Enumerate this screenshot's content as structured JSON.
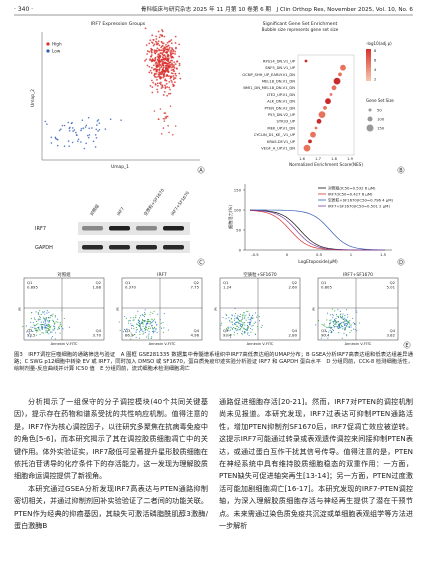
{
  "header": {
    "page": "· 340 ·",
    "journal": "骨科临床与研究杂志 2025 年 11 月第 10 卷第 6 期　J Clin Orthop Res, November 2025, Vol. 10, No. 6"
  },
  "figure": {
    "panel_a": {
      "label": "A",
      "title": "IRF7 Expression Groups",
      "legend": [
        "High",
        "Low"
      ],
      "x_label": "Umap_1",
      "y_label": "Umap_2"
    },
    "panel_b": {
      "label": "B",
      "title": "Significant Gene Set Enrichment",
      "subtitle": "Bubble size represents gene set size",
      "terms": [
        "RPS14_DN.V1_UP",
        "SNF5_DN.V1_UP",
        "GCNP_SHH_UP_EARLY.V1_DN",
        "MEL18_DN.V1_DN",
        "BMI1_DN_MEL18_DN.V1_DN",
        "LTE2_UP.V1_DN",
        "ALK_DN.V1_DN",
        "PTEN_DN.V2_DN",
        "P53_DN.V2_UP",
        "STK33_UP",
        "MEK_UP.V1_DN",
        "CYCLIN_D1_KE_.V1_UP",
        "KRAS.DF.V1_UP",
        "VEGF_A_UP.V1_DN"
      ],
      "x_label": "Normalized Enrichment Score(NES)",
      "x_ticks": [
        "1.6",
        "1.7",
        "1.8",
        "1.9"
      ],
      "color_legend_title": "-log10(adj.p)",
      "color_legend_ticks": [
        "8",
        "6",
        "4",
        "2"
      ],
      "size_legend_title": "Gene Set Size",
      "size_legend_ticks": [
        "50",
        "100",
        "150"
      ]
    },
    "panel_c": {
      "label": "C",
      "lanes": [
        "对照组",
        "IRF7",
        "空质粒+SF1670",
        "IRF7+SF1670"
      ],
      "bands": [
        "IRF7",
        "GAPDH"
      ]
    },
    "panel_d": {
      "label": "D",
      "legend": [
        "对照组(IC50=0.532 6 μM)",
        "IRF7(IC50=0.427 6 μM)",
        "空质粒+SF1670(IC50=0.796 4 μM)",
        "IRF7+SF1670(IC50=0.501 2 μM)"
      ],
      "x_label": "LogEtoposide(μM)",
      "y_label": "细胞活力(%)",
      "x_ticks": [
        "-0.5",
        "0",
        "0.5",
        "1",
        "1.5"
      ],
      "y_ticks": [
        "0",
        "50",
        "100",
        "150"
      ]
    },
    "panel_e": {
      "label": "E",
      "x_label": "Annexin V-FITC",
      "y_label": "PI",
      "plots": [
        {
          "title": "对照组",
          "quadrants": [
            {
              "q": "Q1",
              "v": "0.895"
            },
            {
              "q": "Q2",
              "v": "1.88"
            },
            {
              "q": "Q3",
              "v": "93.5"
            },
            {
              "q": "Q4",
              "v": "3.70"
            }
          ]
        },
        {
          "title": "IRF7",
          "quadrants": [
            {
              "q": "Q1",
              "v": "0.370"
            },
            {
              "q": "Q2",
              "v": "7.75"
            },
            {
              "q": "Q3",
              "v": "86.9"
            },
            {
              "q": "Q4",
              "v": "4.96"
            }
          ]
        },
        {
          "title": "空质粒+SF1670",
          "quadrants": [
            {
              "q": "Q1",
              "v": "1.24"
            },
            {
              "q": "Q2",
              "v": "2.60"
            },
            {
              "q": "Q3",
              "v": "93.4"
            },
            {
              "q": "Q4",
              "v": "2.80"
            }
          ]
        },
        {
          "title": "IRF7+SF1670",
          "quadrants": [
            {
              "q": "Q1",
              "v": "0.805"
            },
            {
              "q": "Q2",
              "v": "5.01"
            },
            {
              "q": "Q3",
              "v": "90.4"
            },
            {
              "q": "Q4",
              "v": "3.82"
            }
          ]
        }
      ]
    }
  },
  "caption": "图3　IRF7调控巨噬细胞的通路筛选与验证　A 图框 GSE281335 数据集中骨髓谱系组织中IRF7高低表达组的UMAP分布；B GSEA分析IRF7高表达组和低表达组差异通路；C SWG p12细胞中转染 EV 或 IRF7，同时加入 DMSO 或 SF1670，蛋白质免疫印迹实验分析验证 IRF7 和 GAPDH 蛋白水平　D 分组同前，CCK-8 检测细胞活性，绘制剂量-反应曲线并计算 IC50 值　E 分组同前，流式细胞术检测细胞凋亡",
  "body": {
    "left": [
      "分析揭示了一组保守的分子调控模块(40个共同关键基因)，提示存在药物和谱系受扰的共性响应机制。值得注意的是，IRF7作为核心调控因子，以往研究多聚焦在抗病毒免疫中的角色[5-6]，而本研究揭示了其在调控胶质细胞凋亡中的关键作用。体外实验证实，IRF7敲低可显著提升星形胶质细胞在依托泊苷诱导的化疗条件下的存活能力，这一发现为理解胶质细胞命运调控提供了新视角。",
      "本研究通过GSEA分析发现IRF7高表达与PTEN通路抑制密切相关，并通过抑制剂回补实验验证了二者间的功能关联。PTEN作为经典的抑癌基因，其缺失可激活磷脂酰肌醇3激酶/蛋白激酶B"
    ],
    "right": [
      "通路促进细胞存活[20-21]。然而，IRF7对PTEN的调控机制尚未见报道。本研究发现，IRF7过表达可抑制PTEN通路活性，增加PTEN抑制剂SF1670后，IRF7促凋亡效应被逆转。这提示IRF7可能通过转录或表观遗传调控来间接抑制PTEN表达，或通过蛋白互作干扰其信号传导。值得注意的是，PTEN在神经系统中具有维持胶质细胞稳态的双重作用：一方面，PTEN缺失可促进轴突再生[13-14]；另一方面，PTEN过度激活可能加剧细胞凋亡[16-17]。本研究发现的IRF7-PTEN调控轴，为深入理解胶质细胞存活与神经再生提供了潜在干预节点。未来需通过染色质免疫共沉淀或单细胞表观组学等方法进一步解析"
    ]
  }
}
